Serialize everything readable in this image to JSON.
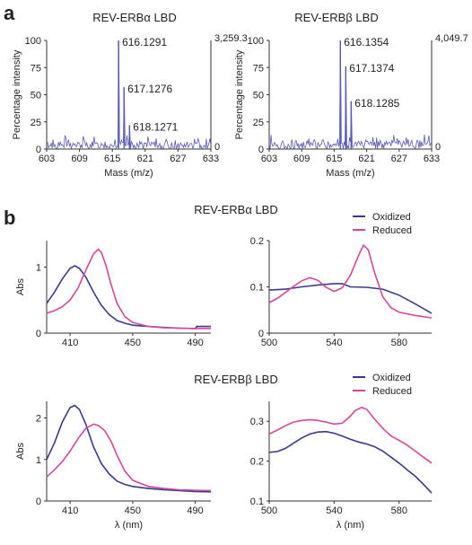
{
  "panel_labels": {
    "a": "a",
    "b": "b"
  },
  "section_a": {
    "titles": [
      "REV-ERBα LBD",
      "REV-ERBβ LBD"
    ]
  },
  "section_b": {
    "titles": [
      "REV-ERBα LBD",
      "REV-ERBβ LBD"
    ]
  },
  "chart_data": [
    {
      "id": "ms_alpha",
      "type": "line",
      "title": "REV-ERBα LBD",
      "xlabel": "Mass (m/z)",
      "ylabel": "Percentage intensity",
      "xlim": [
        603,
        633
      ],
      "ylim": [
        0,
        100
      ],
      "xticks": [
        603,
        609,
        615,
        621,
        627,
        633
      ],
      "yticks": [
        0,
        25,
        50,
        75,
        100
      ],
      "right_axis_labels": {
        "top": "3,259.3",
        "bottom": "0"
      },
      "peaks": [
        {
          "mass": 616.1291,
          "intensity": 100,
          "label": "616.1291"
        },
        {
          "mass": 617.1276,
          "intensity": 57,
          "label": "617.1276"
        },
        {
          "mass": 618.1271,
          "intensity": 22,
          "label": "618.1271"
        }
      ],
      "noise_level": 7,
      "line_color": "#5a5ab4"
    },
    {
      "id": "ms_beta",
      "type": "line",
      "title": "REV-ERBβ LBD",
      "xlabel": "Mass (m/z)",
      "ylabel": "Percentage intensity",
      "xlim": [
        603,
        633
      ],
      "ylim": [
        0,
        100
      ],
      "xticks": [
        603,
        609,
        615,
        621,
        627,
        633
      ],
      "yticks": [
        0,
        25,
        50,
        75,
        100
      ],
      "right_axis_labels": {
        "top": "4,049.7",
        "bottom": "0"
      },
      "peaks": [
        {
          "mass": 616.1354,
          "intensity": 100,
          "label": "616.1354"
        },
        {
          "mass": 617.1374,
          "intensity": 76,
          "label": "617.1374"
        },
        {
          "mass": 618.1285,
          "intensity": 44,
          "label": "618.1285"
        }
      ],
      "noise_level": 8,
      "line_color": "#5a5ab4"
    },
    {
      "id": "abs_alpha_soret",
      "type": "line",
      "title": "",
      "xlabel": "",
      "ylabel": "Abs",
      "xlim": [
        395,
        500
      ],
      "ylim": [
        0,
        1.4
      ],
      "xticks": [
        410,
        450,
        490
      ],
      "yticks": [
        0,
        1
      ],
      "series": [
        {
          "name": "Oxidized",
          "color": "#3a3a8c",
          "x": [
            395,
            400,
            405,
            410,
            413,
            416,
            420,
            425,
            430,
            435,
            440,
            445,
            450,
            460,
            470,
            480,
            490,
            491,
            500
          ],
          "y": [
            0.45,
            0.62,
            0.82,
            0.98,
            1.02,
            0.98,
            0.85,
            0.62,
            0.42,
            0.28,
            0.19,
            0.15,
            0.12,
            0.1,
            0.085,
            0.075,
            0.07,
            0.1,
            0.1
          ]
        },
        {
          "name": "Reduced",
          "color": "#d04a9a",
          "x": [
            395,
            400,
            405,
            410,
            415,
            420,
            425,
            428,
            430,
            433,
            436,
            440,
            445,
            450,
            460,
            470,
            480,
            490,
            500
          ],
          "y": [
            0.3,
            0.34,
            0.4,
            0.5,
            0.68,
            0.95,
            1.2,
            1.27,
            1.22,
            1.02,
            0.75,
            0.45,
            0.25,
            0.16,
            0.1,
            0.08,
            0.075,
            0.07,
            0.07
          ]
        }
      ]
    },
    {
      "id": "abs_alpha_q",
      "type": "line",
      "title": "",
      "xlabel": "",
      "ylabel": "",
      "xlim": [
        500,
        600
      ],
      "ylim": [
        0,
        0.2
      ],
      "xticks": [
        500,
        540,
        580
      ],
      "yticks": [
        0,
        0.1,
        0.2
      ],
      "legend": {
        "placement": "top-right",
        "entries": [
          "Oxidized",
          "Reduced"
        ]
      },
      "series": [
        {
          "name": "Oxidized",
          "color": "#3a3a8c",
          "x": [
            500,
            510,
            520,
            530,
            540,
            545,
            550,
            560,
            570,
            580,
            590,
            600
          ],
          "y": [
            0.093,
            0.095,
            0.1,
            0.104,
            0.107,
            0.107,
            0.1,
            0.099,
            0.095,
            0.082,
            0.063,
            0.043
          ]
        },
        {
          "name": "Reduced",
          "color": "#d04a9a",
          "x": [
            500,
            505,
            510,
            515,
            520,
            525,
            530,
            535,
            540,
            545,
            550,
            555,
            558,
            561,
            565,
            570,
            575,
            580,
            590,
            600
          ],
          "y": [
            0.066,
            0.075,
            0.088,
            0.101,
            0.113,
            0.12,
            0.114,
            0.099,
            0.09,
            0.098,
            0.125,
            0.168,
            0.19,
            0.18,
            0.13,
            0.078,
            0.055,
            0.045,
            0.038,
            0.033
          ]
        }
      ]
    },
    {
      "id": "abs_beta_soret",
      "type": "line",
      "title": "",
      "xlabel": "λ (nm)",
      "ylabel": "Abs",
      "xlim": [
        395,
        500
      ],
      "ylim": [
        0,
        2.4
      ],
      "xticks": [
        410,
        450,
        490
      ],
      "yticks": [
        0,
        1,
        2
      ],
      "series": [
        {
          "name": "Oxidized",
          "color": "#3a3a8c",
          "x": [
            395,
            400,
            405,
            410,
            413,
            416,
            420,
            425,
            430,
            435,
            440,
            445,
            450,
            460,
            470,
            480,
            490,
            500
          ],
          "y": [
            1.0,
            1.4,
            1.9,
            2.25,
            2.3,
            2.2,
            1.85,
            1.3,
            0.9,
            0.65,
            0.48,
            0.4,
            0.35,
            0.3,
            0.27,
            0.25,
            0.23,
            0.22
          ]
        },
        {
          "name": "Reduced",
          "color": "#d04a9a",
          "x": [
            395,
            400,
            405,
            410,
            415,
            420,
            425,
            428,
            432,
            436,
            440,
            445,
            450,
            460,
            470,
            480,
            490,
            500
          ],
          "y": [
            0.58,
            0.75,
            0.95,
            1.2,
            1.5,
            1.75,
            1.85,
            1.82,
            1.7,
            1.45,
            1.1,
            0.72,
            0.5,
            0.35,
            0.3,
            0.27,
            0.26,
            0.25
          ]
        }
      ]
    },
    {
      "id": "abs_beta_q",
      "type": "line",
      "title": "",
      "xlabel": "λ (nm)",
      "ylabel": "",
      "xlim": [
        500,
        600
      ],
      "ylim": [
        0.1,
        0.35
      ],
      "xticks": [
        500,
        540,
        580
      ],
      "yticks": [
        0.1,
        0.2,
        0.3
      ],
      "legend": {
        "placement": "top-right",
        "entries": [
          "Oxidized",
          "Reduced"
        ]
      },
      "series": [
        {
          "name": "Oxidized",
          "color": "#3a3a8c",
          "x": [
            500,
            505,
            510,
            515,
            520,
            525,
            530,
            535,
            540,
            545,
            550,
            555,
            560,
            565,
            570,
            575,
            580,
            585,
            590,
            595,
            600
          ],
          "y": [
            0.222,
            0.224,
            0.232,
            0.245,
            0.258,
            0.268,
            0.273,
            0.274,
            0.27,
            0.263,
            0.255,
            0.248,
            0.243,
            0.236,
            0.225,
            0.21,
            0.195,
            0.178,
            0.162,
            0.142,
            0.12
          ]
        },
        {
          "name": "Reduced",
          "color": "#d04a9a",
          "x": [
            500,
            505,
            510,
            515,
            520,
            525,
            530,
            535,
            540,
            545,
            550,
            553,
            557,
            560,
            565,
            570,
            575,
            580,
            585,
            590,
            595,
            600
          ],
          "y": [
            0.268,
            0.278,
            0.289,
            0.298,
            0.302,
            0.304,
            0.302,
            0.298,
            0.293,
            0.295,
            0.313,
            0.327,
            0.335,
            0.33,
            0.305,
            0.282,
            0.263,
            0.252,
            0.24,
            0.225,
            0.21,
            0.195
          ]
        }
      ]
    }
  ]
}
